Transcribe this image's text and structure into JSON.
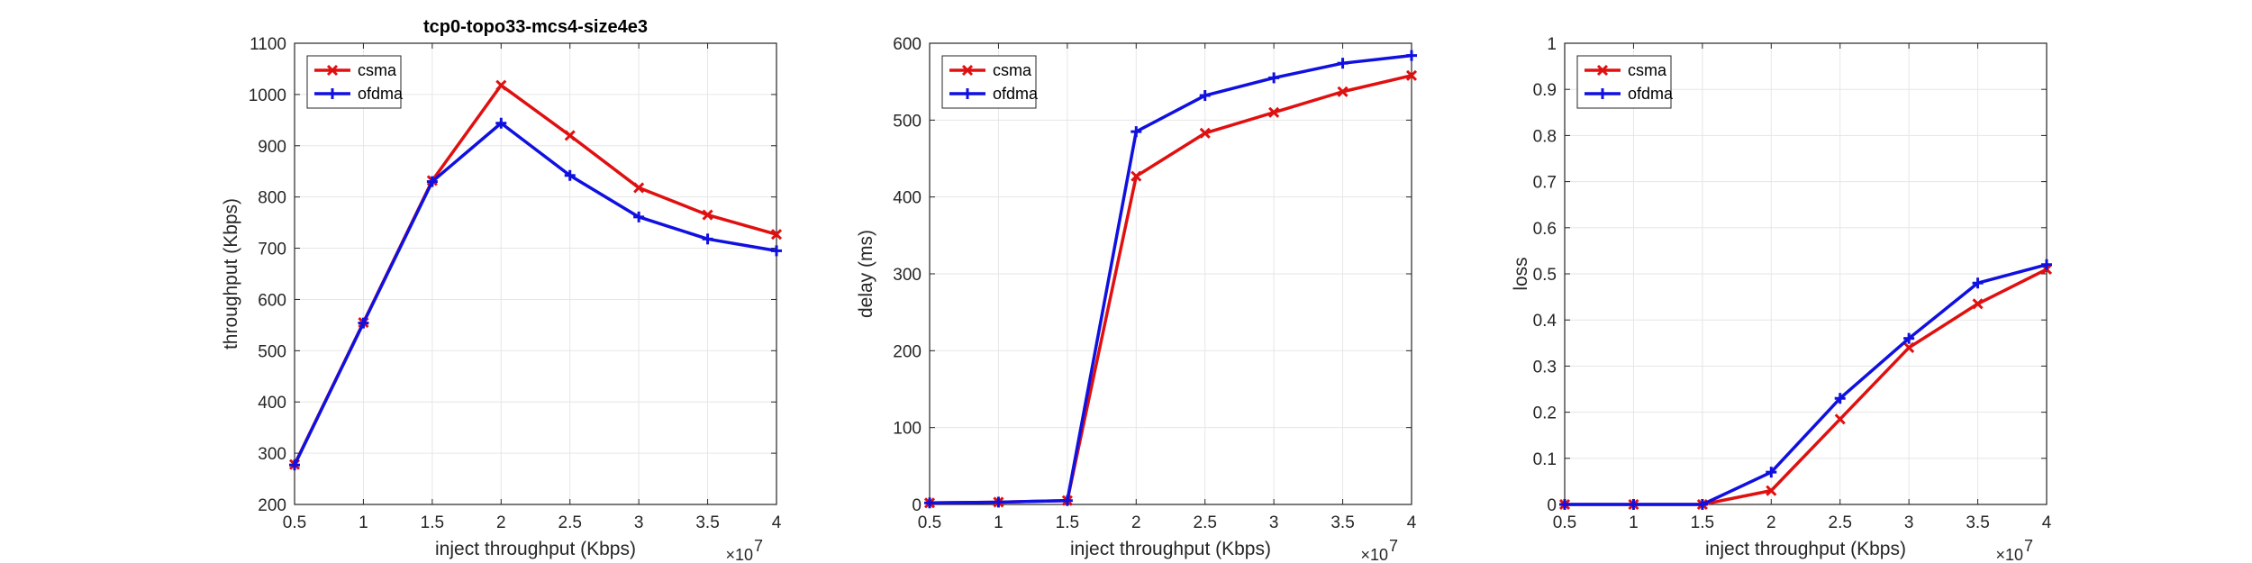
{
  "figure": {
    "suptitle": "tcp0-topo33-mcs4-size4e3"
  },
  "colors": {
    "csma": "#e01010",
    "ofdma": "#1010e0",
    "grid": "#e6e6e6",
    "axis": "#262626"
  },
  "chart_data": [
    {
      "type": "line",
      "title": "tcp0-topo33-mcs4-size4e3",
      "xlabel": "inject throughput (Kbps)",
      "ylabel": "throughput (Kbps)",
      "x_multiplier_label": "×10",
      "x_multiplier_exp": "7",
      "xlim": [
        0.5,
        4
      ],
      "ylim": [
        200,
        1100
      ],
      "xticks": [
        "0.5",
        "1",
        "1.5",
        "2",
        "2.5",
        "3",
        "3.5",
        "4"
      ],
      "yticks": [
        "200",
        "300",
        "400",
        "500",
        "600",
        "700",
        "800",
        "900",
        "1000",
        "1100"
      ],
      "grid": true,
      "legend_position": "top-left",
      "x": [
        0.5,
        1,
        1.5,
        2,
        2.5,
        3,
        3.5,
        4
      ],
      "series": [
        {
          "name": "csma",
          "marker": "x",
          "values": [
            278,
            555,
            832,
            1018,
            920,
            818,
            765,
            727
          ]
        },
        {
          "name": "ofdma",
          "marker": "+",
          "values": [
            277,
            554,
            830,
            944,
            842,
            761,
            718,
            695
          ]
        }
      ]
    },
    {
      "type": "line",
      "title": "",
      "xlabel": "inject throughput (Kbps)",
      "ylabel": "delay (ms)",
      "x_multiplier_label": "×10",
      "x_multiplier_exp": "7",
      "xlim": [
        0.5,
        4
      ],
      "ylim": [
        0,
        600
      ],
      "xticks": [
        "0.5",
        "1",
        "1.5",
        "2",
        "2.5",
        "3",
        "3.5",
        "4"
      ],
      "yticks": [
        "0",
        "100",
        "200",
        "300",
        "400",
        "500",
        "600"
      ],
      "grid": true,
      "legend_position": "top-left",
      "x": [
        0.5,
        1,
        1.5,
        2,
        2.5,
        3,
        3.5,
        4
      ],
      "series": [
        {
          "name": "csma",
          "marker": "x",
          "values": [
            2,
            3,
            5,
            427,
            483,
            510,
            537,
            558
          ]
        },
        {
          "name": "ofdma",
          "marker": "+",
          "values": [
            2,
            3,
            5,
            485,
            532,
            555,
            574,
            584
          ]
        }
      ]
    },
    {
      "type": "line",
      "title": "",
      "xlabel": "inject throughput (Kbps)",
      "ylabel": "loss",
      "x_multiplier_label": "×10",
      "x_multiplier_exp": "7",
      "xlim": [
        0.5,
        4
      ],
      "ylim": [
        0,
        1
      ],
      "xticks": [
        "0.5",
        "1",
        "1.5",
        "2",
        "2.5",
        "3",
        "3.5",
        "4"
      ],
      "yticks": [
        "0",
        "0.1",
        "0.2",
        "0.3",
        "0.4",
        "0.5",
        "0.6",
        "0.7",
        "0.8",
        "0.9",
        "1"
      ],
      "grid": true,
      "legend_position": "top-left",
      "x": [
        0.5,
        1,
        1.5,
        2,
        2.5,
        3,
        3.5,
        4
      ],
      "series": [
        {
          "name": "csma",
          "marker": "x",
          "values": [
            0,
            0,
            0,
            0.03,
            0.185,
            0.34,
            0.435,
            0.51
          ]
        },
        {
          "name": "ofdma",
          "marker": "+",
          "values": [
            0,
            0,
            0,
            0.07,
            0.23,
            0.36,
            0.48,
            0.52
          ]
        }
      ]
    }
  ]
}
